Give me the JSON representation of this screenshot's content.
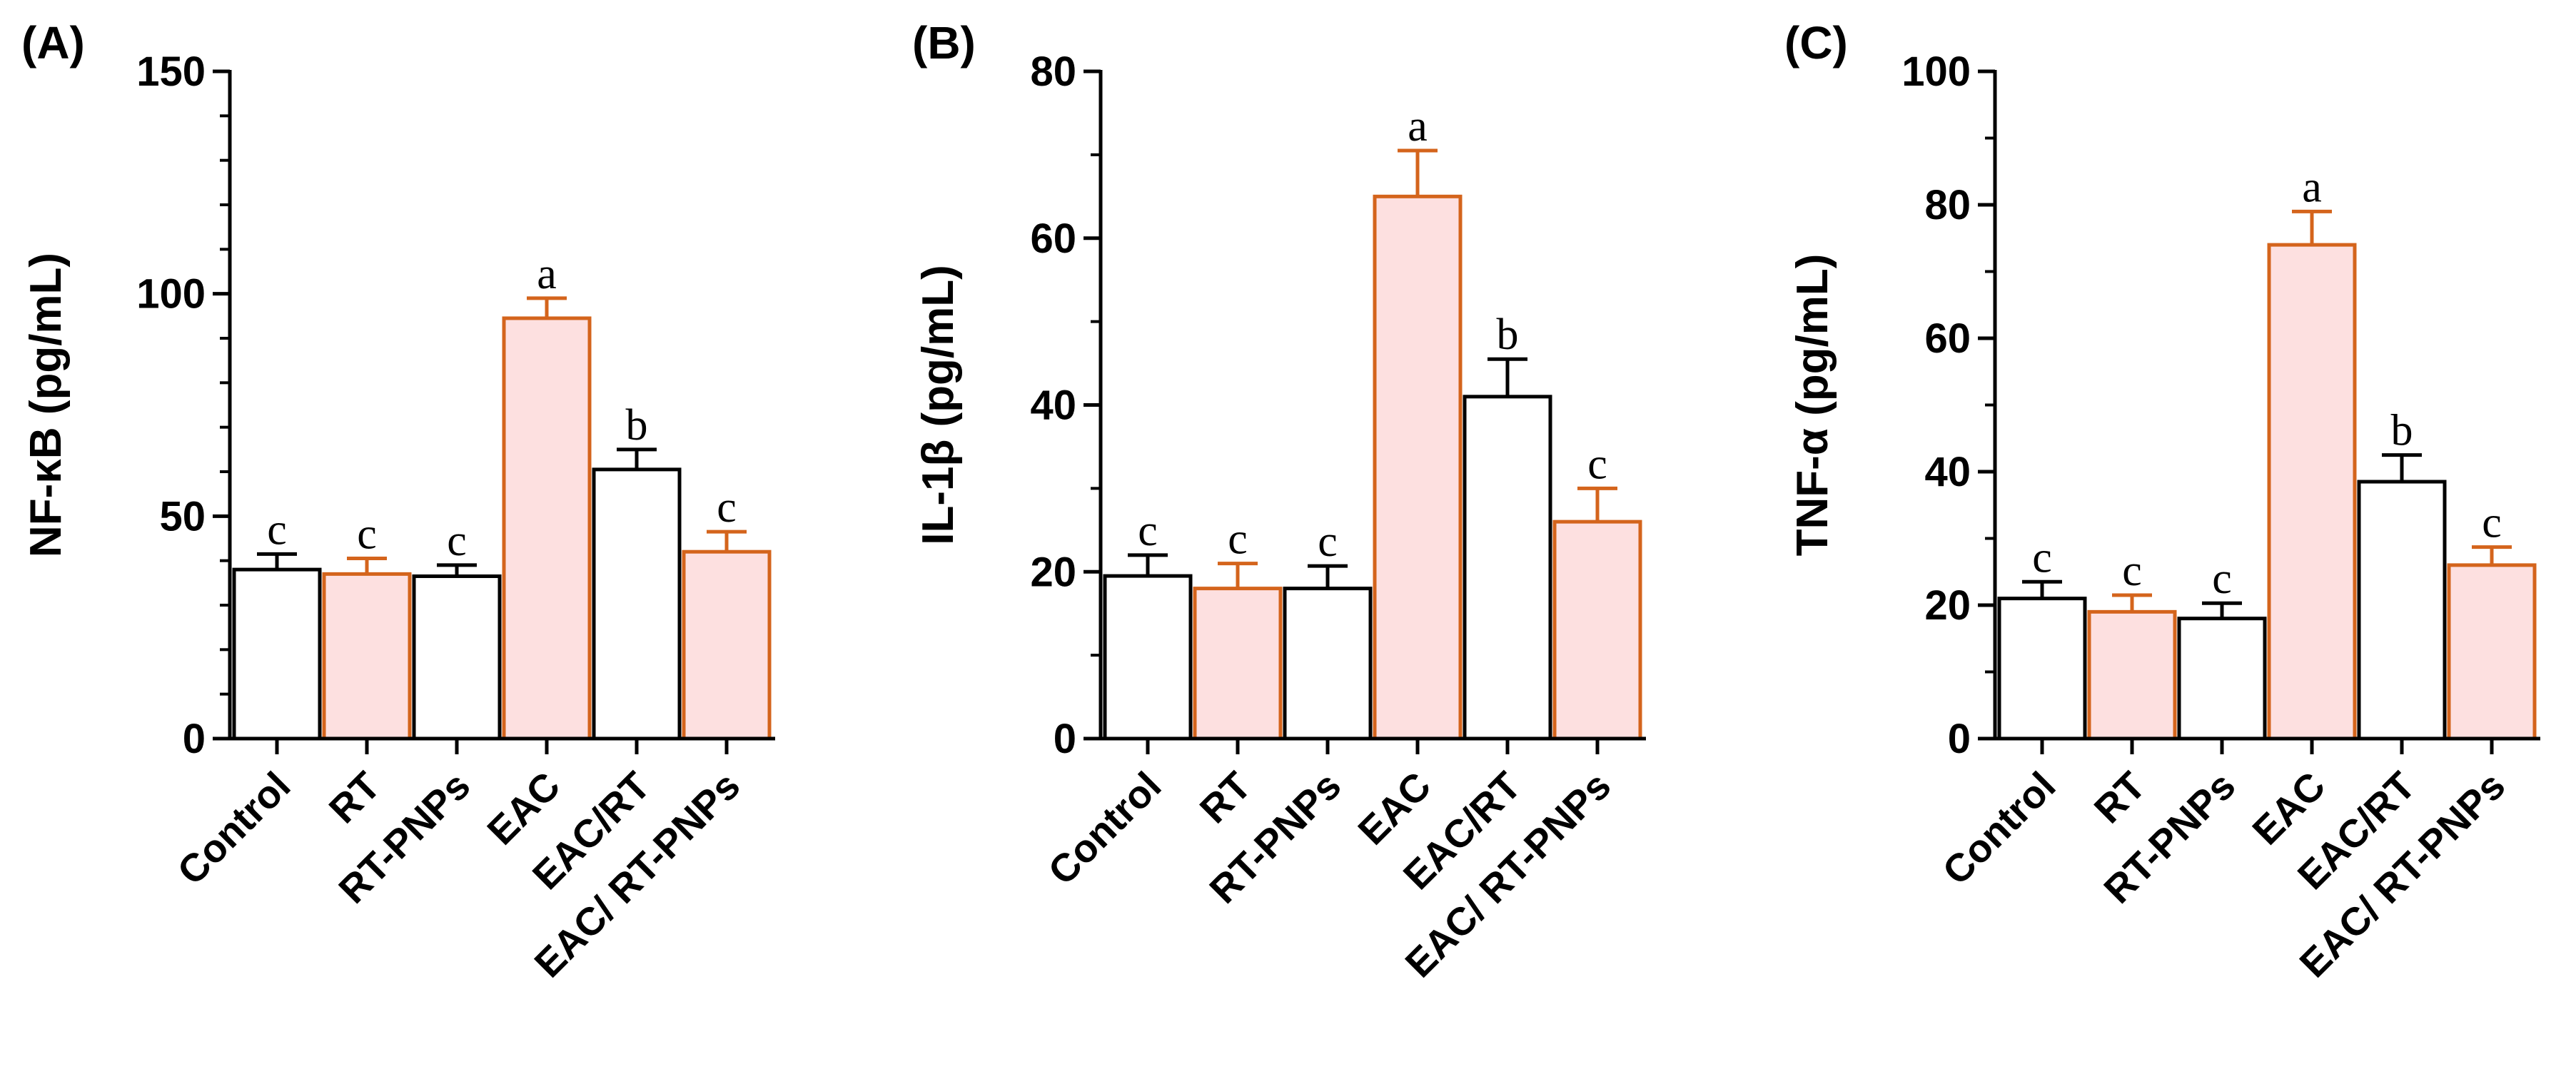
{
  "colors": {
    "control_fill": "#ffffff",
    "control_stroke": "#000000",
    "treated_fill": "#fde0e0",
    "treated_stroke": "#d4641c",
    "axis": "#000000"
  },
  "chart_data": [
    {
      "type": "bar",
      "panel": "(A)",
      "ylabel": "NF-κB (pg/mL)",
      "ylim": [
        0,
        150
      ],
      "major_ticks": [
        0,
        50,
        100,
        150
      ],
      "minor_step": 10,
      "categories": [
        "Control",
        "RT",
        "RT-PNPs",
        "EAC",
        "EAC/RT",
        "EAC/ RT-PNPs"
      ],
      "values": [
        38,
        37,
        36.5,
        94.5,
        60.5,
        42
      ],
      "errors": [
        3.5,
        3.5,
        2.5,
        4.5,
        4.5,
        4.5
      ],
      "letters": [
        "c",
        "c",
        "c",
        "a",
        "b",
        "c"
      ],
      "styles": [
        "control",
        "treated",
        "control",
        "treated",
        "control",
        "treated"
      ]
    },
    {
      "type": "bar",
      "panel": "(B)",
      "ylabel": "IL-1β (pg/mL)",
      "ylim": [
        0,
        80
      ],
      "major_ticks": [
        0,
        20,
        40,
        60,
        80
      ],
      "minor_step": 10,
      "categories": [
        "Control",
        "RT",
        "RT-PNPs",
        "EAC",
        "EAC/RT",
        "EAC/ RT-PNPs"
      ],
      "values": [
        19.5,
        18,
        18,
        65,
        41,
        26
      ],
      "errors": [
        2.5,
        3,
        2.7,
        5.5,
        4.5,
        4
      ],
      "letters": [
        "c",
        "c",
        "c",
        "a",
        "b",
        "c"
      ],
      "styles": [
        "control",
        "treated",
        "control",
        "treated",
        "control",
        "treated"
      ]
    },
    {
      "type": "bar",
      "panel": "(C)",
      "ylabel": "TNF-α (pg/mL)",
      "ylim": [
        0,
        100
      ],
      "major_ticks": [
        0,
        20,
        40,
        60,
        80,
        100
      ],
      "minor_step": 10,
      "categories": [
        "Control",
        "RT",
        "RT-PNPs",
        "EAC",
        "EAC/RT",
        "EAC/ RT-PNPs"
      ],
      "values": [
        21,
        19,
        18,
        74,
        38.5,
        26
      ],
      "errors": [
        2.5,
        2.5,
        2.3,
        5,
        4,
        2.7
      ],
      "letters": [
        "c",
        "c",
        "c",
        "a",
        "b",
        "c"
      ],
      "styles": [
        "control",
        "treated",
        "control",
        "treated",
        "control",
        "treated"
      ]
    }
  ]
}
